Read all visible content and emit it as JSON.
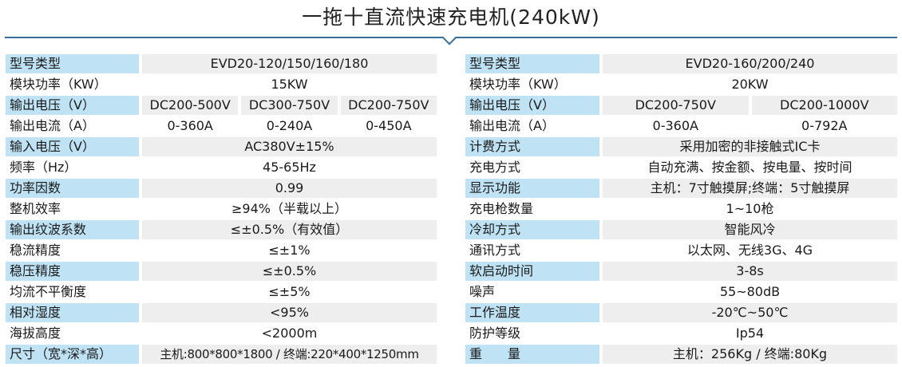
{
  "title": "一拖十直流快速充电机(240kW)",
  "left_table": [
    {
      "label": "型号类型",
      "values": [
        "EVD20-120/150/160/180"
      ]
    },
    {
      "label": "模块功率（KW）",
      "values": [
        "15KW"
      ]
    },
    {
      "label": "输出电压（V）",
      "values": [
        "DC200-500V",
        "DC300-750V",
        "DC200-750V"
      ]
    },
    {
      "label": "输出电流（A）",
      "values": [
        "0-360A",
        "0-240A",
        "0-450A"
      ]
    },
    {
      "label": "输入电压（V）",
      "values": [
        "AC380V±15%"
      ]
    },
    {
      "label": "频率（Hz）",
      "values": [
        "45-65Hz"
      ]
    },
    {
      "label": "功率因数",
      "values": [
        "0.99"
      ]
    },
    {
      "label": "整机效率",
      "values": [
        "≥94%（半载以上）"
      ]
    },
    {
      "label": "输出纹波系数",
      "values": [
        "≤±0.5%（有效值）"
      ]
    },
    {
      "label": "稳流精度",
      "values": [
        "≤±1%"
      ]
    },
    {
      "label": "稳压精度",
      "values": [
        "≤±0.5%"
      ]
    },
    {
      "label": "均流不平衡度",
      "values": [
        "≤±5%"
      ]
    },
    {
      "label": "相对湿度",
      "values": [
        "<95%"
      ]
    },
    {
      "label": "海拔高度",
      "values": [
        "<2000m"
      ]
    },
    {
      "label": "尺寸（宽*深*高）",
      "values": [
        "主机:800*800*1800 / 终端:220*400*1250mm"
      ]
    }
  ],
  "right_table": [
    {
      "label": "型号类型",
      "values": [
        "EVD20-160/200/240"
      ]
    },
    {
      "label": "模块功率（KW）",
      "values": [
        "20KW"
      ]
    },
    {
      "label": "输出电压（V）",
      "values": [
        "DC200-750V",
        "DC200-1000V"
      ]
    },
    {
      "label": "输出电流（A）",
      "values": [
        "0-360A",
        "0-792A"
      ]
    },
    {
      "label": "计费方式",
      "values": [
        "采用加密的非接触式IC卡"
      ]
    },
    {
      "label": "充电方式",
      "values": [
        "自动充满、按金额、按电量、按时间"
      ]
    },
    {
      "label": "显示功能",
      "values": [
        "主机：7寸触摸屏;终端：5寸触摸屏"
      ]
    },
    {
      "label": "充电枪数量",
      "values": [
        "1~10枪"
      ]
    },
    {
      "label": "冷却方式",
      "values": [
        "智能风冷"
      ]
    },
    {
      "label": "通讯方式",
      "values": [
        "以太网、无线3G、4G"
      ]
    },
    {
      "label": "软启动时间",
      "values": [
        "3-8s"
      ]
    },
    {
      "label": "噪声",
      "values": [
        "55~80dB"
      ]
    },
    {
      "label": "工作温度",
      "values": [
        "-20℃~50℃"
      ]
    },
    {
      "label": "防护等级",
      "values": [
        "Ip54"
      ]
    },
    {
      "label": "重　　量",
      "values": [
        "主机：256Kg / 终端:80Kg"
      ]
    }
  ],
  "colors": {
    "label_band": "#bfe3f5",
    "value_band": "#eeeeee",
    "divider": "#3a6f9c"
  }
}
